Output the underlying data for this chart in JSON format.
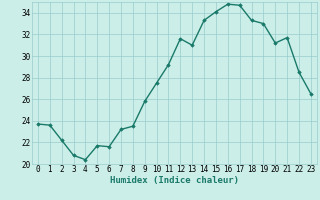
{
  "x": [
    0,
    1,
    2,
    3,
    4,
    5,
    6,
    7,
    8,
    9,
    10,
    11,
    12,
    13,
    14,
    15,
    16,
    17,
    18,
    19,
    20,
    21,
    22,
    23
  ],
  "y": [
    23.7,
    23.6,
    22.2,
    20.8,
    20.4,
    21.7,
    21.6,
    23.2,
    23.5,
    25.8,
    27.5,
    29.2,
    31.6,
    31.0,
    33.3,
    34.1,
    34.8,
    34.7,
    33.3,
    33.0,
    31.2,
    31.7,
    28.5,
    26.5
  ],
  "line_color": "#1a7a6a",
  "marker": "D",
  "marker_size": 1.8,
  "linewidth": 1.0,
  "bg_color": "#cceee8",
  "grid_color": "#99cccc",
  "xlabel": "Humidex (Indice chaleur)",
  "ylim": [
    20,
    35
  ],
  "yticks": [
    20,
    22,
    24,
    26,
    28,
    30,
    32,
    34
  ],
  "xlim": [
    -0.5,
    23.5
  ],
  "xticks": [
    0,
    1,
    2,
    3,
    4,
    5,
    6,
    7,
    8,
    9,
    10,
    11,
    12,
    13,
    14,
    15,
    16,
    17,
    18,
    19,
    20,
    21,
    22,
    23
  ],
  "xlabel_fontsize": 6.5,
  "tick_fontsize": 5.5
}
